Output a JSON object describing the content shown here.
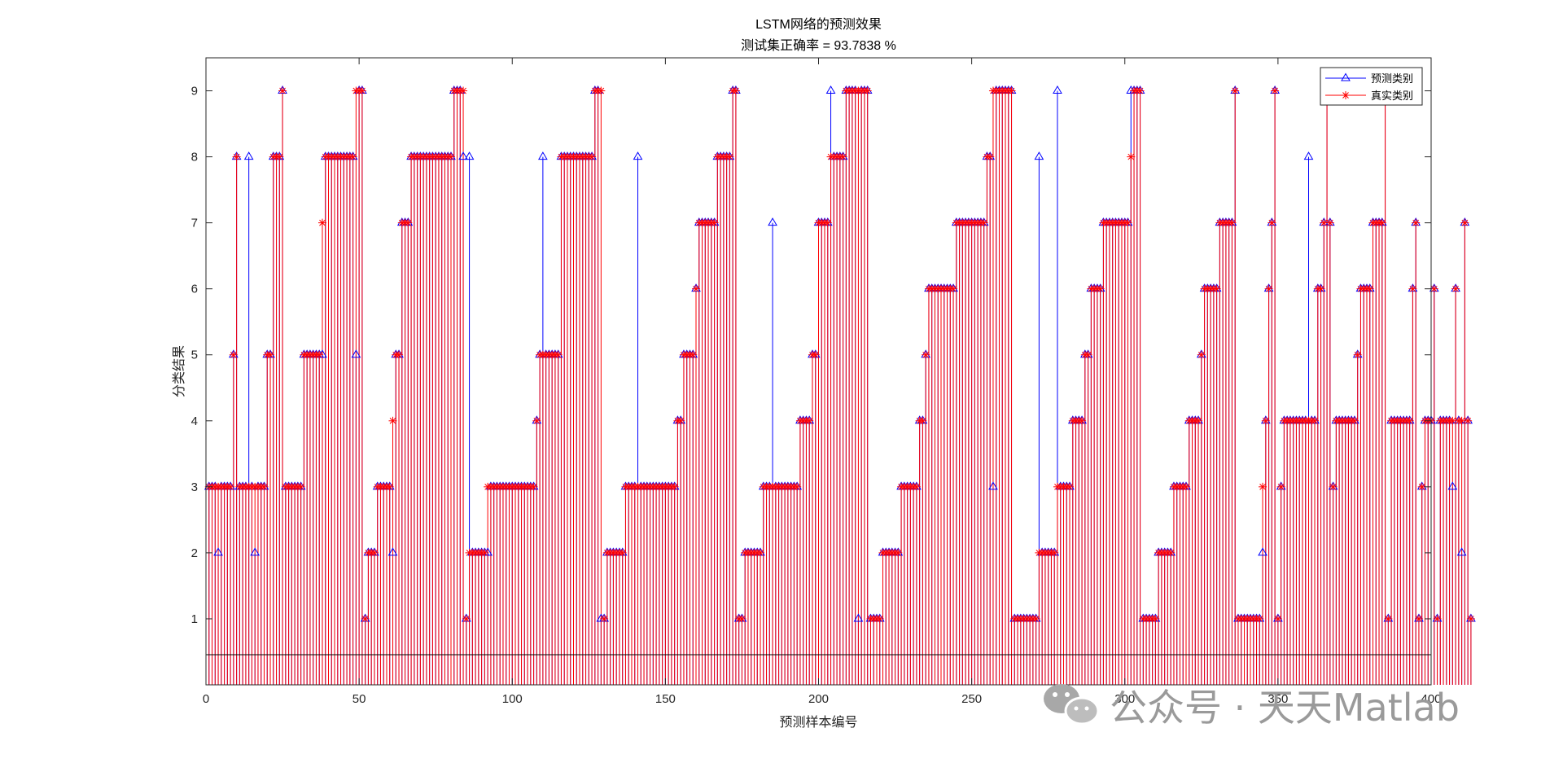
{
  "chart_data": {
    "type": "stem",
    "title": "LSTM网络的预测效果",
    "subtitle": "测试集正确率 = 93.7838 %",
    "xlabel": "预测样本编号",
    "ylabel": "分类结果",
    "xlim": [
      0,
      400
    ],
    "ylim": [
      0,
      9.5
    ],
    "xticks": [
      "0",
      "50",
      "100",
      "150",
      "200",
      "250",
      "300",
      "350",
      "400"
    ],
    "yticks": [
      "1",
      "2",
      "3",
      "4",
      "5",
      "6",
      "7",
      "8",
      "9"
    ],
    "legend_position": "top-right",
    "series": [
      {
        "name": "预测类别",
        "color": "#0000ff",
        "marker": "triangle",
        "values": [
          3,
          3,
          3,
          2,
          3,
          3,
          3,
          3,
          5,
          8,
          3,
          3,
          3,
          8,
          3,
          2,
          3,
          3,
          3,
          5,
          5,
          8,
          8,
          8,
          9,
          3,
          3,
          3,
          3,
          3,
          3,
          5,
          5,
          5,
          5,
          5,
          5,
          5,
          8,
          8,
          8,
          8,
          8,
          8,
          8,
          8,
          8,
          8,
          5,
          9,
          9,
          1,
          2,
          2,
          2,
          3,
          3,
          3,
          3,
          3,
          2,
          5,
          5,
          7,
          7,
          7,
          8,
          8,
          8,
          8,
          8,
          8,
          8,
          8,
          8,
          8,
          8,
          8,
          8,
          8,
          9,
          9,
          9,
          8,
          1,
          8,
          2,
          2,
          2,
          2,
          2,
          2,
          3,
          3,
          3,
          3,
          3,
          3,
          3,
          3,
          3,
          3,
          3,
          3,
          3,
          3,
          3,
          4,
          5,
          8,
          5,
          5,
          5,
          5,
          5,
          8,
          8,
          8,
          8,
          8,
          8,
          8,
          8,
          8,
          8,
          8,
          9,
          9,
          1,
          1,
          2,
          2,
          2,
          2,
          2,
          2,
          3,
          3,
          3,
          3,
          8,
          3,
          3,
          3,
          3,
          3,
          3,
          3,
          3,
          3,
          3,
          3,
          3,
          4,
          4,
          5,
          5,
          5,
          5,
          6,
          7,
          7,
          7,
          7,
          7,
          7,
          8,
          8,
          8,
          8,
          8,
          9,
          9,
          1,
          1,
          2,
          2,
          2,
          2,
          2,
          2,
          3,
          3,
          3,
          7,
          3,
          3,
          3,
          3,
          3,
          3,
          3,
          3,
          4,
          4,
          4,
          4,
          5,
          5,
          7,
          7,
          7,
          7,
          9,
          8,
          8,
          8,
          8,
          9,
          9,
          9,
          9,
          1,
          9,
          9,
          9,
          1,
          1,
          1,
          1,
          2,
          2,
          2,
          2,
          2,
          2,
          3,
          3,
          3,
          3,
          3,
          3,
          4,
          4,
          5,
          6,
          6,
          6,
          6,
          6,
          6,
          6,
          6,
          6,
          7,
          7,
          7,
          7,
          7,
          7,
          7,
          7,
          7,
          7,
          8,
          8,
          3,
          9,
          9,
          9,
          9,
          9,
          9,
          1,
          1,
          1,
          1,
          1,
          1,
          1,
          1,
          8,
          2,
          2,
          2,
          2,
          2,
          9,
          3,
          3,
          3,
          3,
          4,
          4,
          4,
          4,
          5,
          5,
          6,
          6,
          6,
          6,
          7,
          7,
          7,
          7,
          7,
          7,
          7,
          7,
          7,
          9,
          9,
          9,
          9,
          1,
          1,
          1,
          1,
          1,
          2,
          2,
          2,
          2,
          2,
          3,
          3,
          3,
          3,
          3,
          4,
          4,
          4,
          4,
          5,
          6,
          6,
          6,
          6,
          6,
          7,
          7,
          7,
          7,
          7,
          9,
          1,
          1,
          1,
          1,
          1,
          1,
          1,
          1,
          2,
          4,
          6,
          7,
          9,
          1,
          3,
          4,
          4,
          4,
          4,
          4,
          4,
          4,
          4,
          8,
          4,
          4,
          6,
          6,
          7,
          9,
          7,
          3,
          4,
          4,
          4,
          4,
          4,
          4,
          4,
          5,
          6,
          6,
          6,
          6,
          7,
          7,
          7,
          7,
          9,
          1,
          4,
          4,
          4,
          4,
          4,
          4,
          4,
          6,
          7,
          1,
          3,
          4,
          4,
          4,
          6,
          1,
          4,
          4,
          4,
          4,
          3,
          6,
          4,
          2,
          7,
          4,
          1
        ]
      },
      {
        "name": "真实类别",
        "color": "#ff0000",
        "marker": "asterisk",
        "values": [
          3,
          3,
          3,
          3,
          3,
          3,
          3,
          3,
          5,
          8,
          3,
          3,
          3,
          3,
          3,
          3,
          3,
          3,
          3,
          5,
          5,
          8,
          8,
          8,
          9,
          3,
          3,
          3,
          3,
          3,
          3,
          5,
          5,
          5,
          5,
          5,
          5,
          7,
          8,
          8,
          8,
          8,
          8,
          8,
          8,
          8,
          8,
          8,
          9,
          9,
          9,
          1,
          2,
          2,
          2,
          3,
          3,
          3,
          3,
          3,
          4,
          5,
          5,
          7,
          7,
          7,
          8,
          8,
          8,
          8,
          8,
          8,
          8,
          8,
          8,
          8,
          8,
          8,
          8,
          8,
          9,
          9,
          9,
          9,
          1,
          2,
          2,
          2,
          2,
          2,
          2,
          3,
          3,
          3,
          3,
          3,
          3,
          3,
          3,
          3,
          3,
          3,
          3,
          3,
          3,
          3,
          3,
          4,
          5,
          5,
          5,
          5,
          5,
          5,
          5,
          8,
          8,
          8,
          8,
          8,
          8,
          8,
          8,
          8,
          8,
          8,
          9,
          9,
          9,
          1,
          2,
          2,
          2,
          2,
          2,
          2,
          3,
          3,
          3,
          3,
          3,
          3,
          3,
          3,
          3,
          3,
          3,
          3,
          3,
          3,
          3,
          3,
          3,
          4,
          4,
          5,
          5,
          5,
          5,
          6,
          7,
          7,
          7,
          7,
          7,
          7,
          8,
          8,
          8,
          8,
          8,
          9,
          9,
          1,
          1,
          2,
          2,
          2,
          2,
          2,
          2,
          3,
          3,
          3,
          3,
          3,
          3,
          3,
          3,
          3,
          3,
          3,
          3,
          4,
          4,
          4,
          4,
          5,
          5,
          7,
          7,
          7,
          7,
          8,
          8,
          8,
          8,
          8,
          9,
          9,
          9,
          9,
          9,
          9,
          9,
          9,
          1,
          1,
          1,
          1,
          2,
          2,
          2,
          2,
          2,
          2,
          3,
          3,
          3,
          3,
          3,
          3,
          4,
          4,
          5,
          6,
          6,
          6,
          6,
          6,
          6,
          6,
          6,
          6,
          7,
          7,
          7,
          7,
          7,
          7,
          7,
          7,
          7,
          7,
          8,
          8,
          9,
          9,
          9,
          9,
          9,
          9,
          9,
          1,
          1,
          1,
          1,
          1,
          1,
          1,
          1,
          2,
          2,
          2,
          2,
          2,
          2,
          3,
          3,
          3,
          3,
          3,
          4,
          4,
          4,
          4,
          5,
          5,
          6,
          6,
          6,
          6,
          7,
          7,
          7,
          7,
          7,
          7,
          7,
          7,
          7,
          8,
          9,
          9,
          9,
          1,
          1,
          1,
          1,
          1,
          2,
          2,
          2,
          2,
          2,
          3,
          3,
          3,
          3,
          3,
          4,
          4,
          4,
          4,
          5,
          6,
          6,
          6,
          6,
          6,
          7,
          7,
          7,
          7,
          7,
          9,
          1,
          1,
          1,
          1,
          1,
          1,
          1,
          1,
          3,
          4,
          6,
          7,
          9,
          1,
          3,
          4,
          4,
          4,
          4,
          4,
          4,
          4,
          4,
          4,
          4,
          4,
          6,
          6,
          7,
          9,
          7,
          3,
          4,
          4,
          4,
          4,
          4,
          4,
          4,
          5,
          6,
          6,
          6,
          6,
          7,
          7,
          7,
          7,
          9,
          1,
          4,
          4,
          4,
          4,
          4,
          4,
          4,
          6,
          7,
          1,
          3,
          4,
          4,
          4,
          6,
          1,
          4,
          4,
          4,
          4,
          4,
          6,
          4,
          4,
          7,
          4,
          1
        ]
      }
    ]
  },
  "watermark": {
    "text": "公众号 · 天天Matlab",
    "icon": "wechat-icon"
  }
}
